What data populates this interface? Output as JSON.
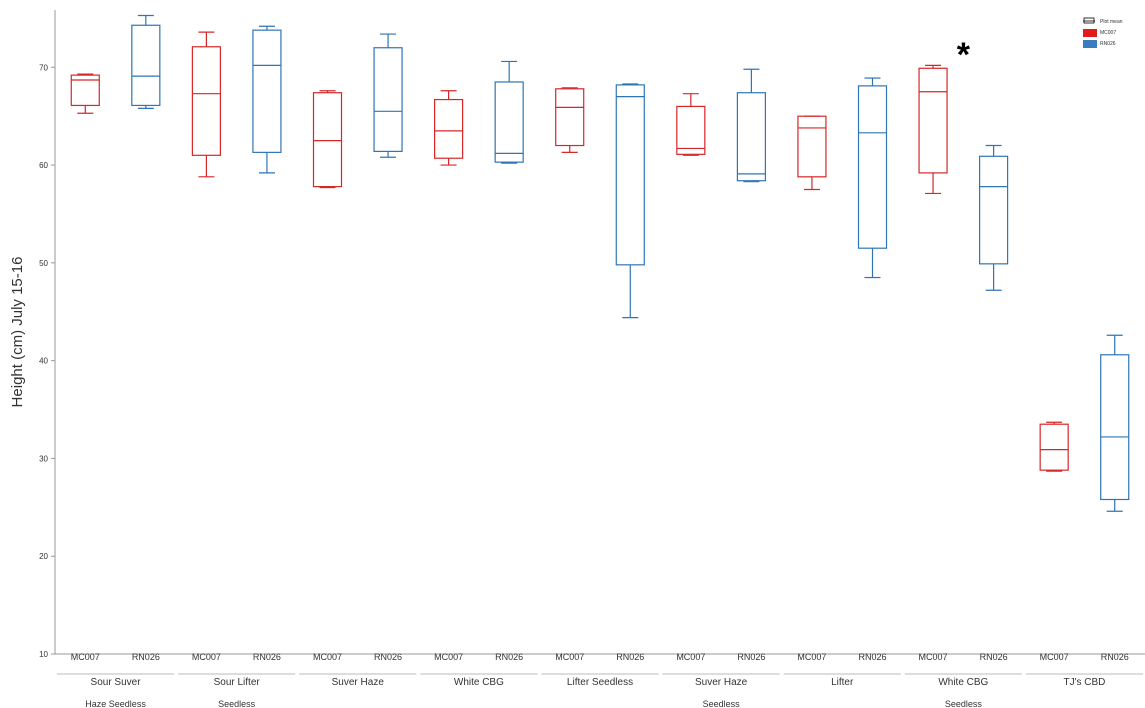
{
  "chart_data": {
    "type": "box",
    "ylabel": "Height (cm) July 15-16",
    "ylim": [
      10,
      76
    ],
    "yticks": [
      10,
      20,
      30,
      40,
      50,
      60,
      70
    ],
    "legend": {
      "position": "top-right",
      "entries": [
        {
          "label": "Plot mean",
          "kind": "box-outline"
        },
        {
          "label": "MC007",
          "color": "#e31a1c"
        },
        {
          "label": "RN026",
          "color": "#3a7dbf"
        }
      ]
    },
    "colors": {
      "MC007": "#d62728",
      "RN026": "#2f75b5"
    },
    "annotation": "*",
    "annotation_group": "White CBG Seedless",
    "groups": [
      {
        "name": "Sour Suver",
        "sub": "Haze Seedless",
        "boxes": [
          {
            "label": "MC007",
            "min": 65.3,
            "q1": 66.1,
            "median": 68.7,
            "q3": 69.2,
            "max": 69.3
          },
          {
            "label": "RN026",
            "min": 65.8,
            "q1": 66.1,
            "median": 69.1,
            "q3": 74.3,
            "max": 75.3
          }
        ]
      },
      {
        "name": "Sour Lifter",
        "sub": "Seedless",
        "boxes": [
          {
            "label": "MC007",
            "min": 58.8,
            "q1": 61.0,
            "median": 67.3,
            "q3": 72.1,
            "max": 73.6
          },
          {
            "label": "RN026",
            "min": 59.2,
            "q1": 61.3,
            "median": 70.2,
            "q3": 73.8,
            "max": 74.2
          }
        ]
      },
      {
        "name": "Suver Haze",
        "sub": "",
        "boxes": [
          {
            "label": "MC007",
            "min": 57.7,
            "q1": 57.8,
            "median": 62.5,
            "q3": 67.4,
            "max": 67.6
          },
          {
            "label": "RN026",
            "min": 60.8,
            "q1": 61.4,
            "median": 65.5,
            "q3": 72.0,
            "max": 73.4
          }
        ]
      },
      {
        "name": "White CBG",
        "sub": "",
        "boxes": [
          {
            "label": "MC007",
            "min": 60.0,
            "q1": 60.7,
            "median": 63.5,
            "q3": 66.7,
            "max": 67.6
          },
          {
            "label": "RN026",
            "min": 60.2,
            "q1": 60.3,
            "median": 61.2,
            "q3": 68.5,
            "max": 70.6
          }
        ]
      },
      {
        "name": "Lifter Seedless",
        "sub": "",
        "boxes": [
          {
            "label": "MC007",
            "min": 61.3,
            "q1": 62.0,
            "median": 65.9,
            "q3": 67.8,
            "max": 67.9
          },
          {
            "label": "RN026",
            "min": 44.4,
            "q1": 49.8,
            "median": 67.0,
            "q3": 68.2,
            "max": 68.3
          }
        ]
      },
      {
        "name": "Suver Haze",
        "sub": "Seedless",
        "boxes": [
          {
            "label": "MC007",
            "min": 61.0,
            "q1": 61.1,
            "median": 61.7,
            "q3": 66.0,
            "max": 67.3
          },
          {
            "label": "RN026",
            "min": 58.3,
            "q1": 58.4,
            "median": 59.1,
            "q3": 67.4,
            "max": 69.8
          }
        ]
      },
      {
        "name": "Lifter",
        "sub": "",
        "boxes": [
          {
            "label": "MC007",
            "min": 57.5,
            "q1": 58.8,
            "median": 63.8,
            "q3": 65.0,
            "max": 65.0
          },
          {
            "label": "RN026",
            "min": 48.5,
            "q1": 51.5,
            "median": 63.3,
            "q3": 68.1,
            "max": 68.9
          }
        ]
      },
      {
        "name": "White CBG",
        "sub": "Seedless",
        "boxes": [
          {
            "label": "MC007",
            "min": 57.1,
            "q1": 59.2,
            "median": 67.5,
            "q3": 69.9,
            "max": 70.2
          },
          {
            "label": "RN026",
            "min": 47.2,
            "q1": 49.9,
            "median": 57.8,
            "q3": 60.9,
            "max": 62.0
          }
        ]
      },
      {
        "name": "TJ's CBD",
        "sub": "",
        "boxes": [
          {
            "label": "MC007",
            "min": 28.7,
            "q1": 28.8,
            "median": 30.9,
            "q3": 33.5,
            "max": 33.7
          },
          {
            "label": "RN026",
            "min": 24.6,
            "q1": 25.8,
            "median": 32.2,
            "q3": 40.6,
            "max": 42.6
          }
        ]
      }
    ]
  }
}
